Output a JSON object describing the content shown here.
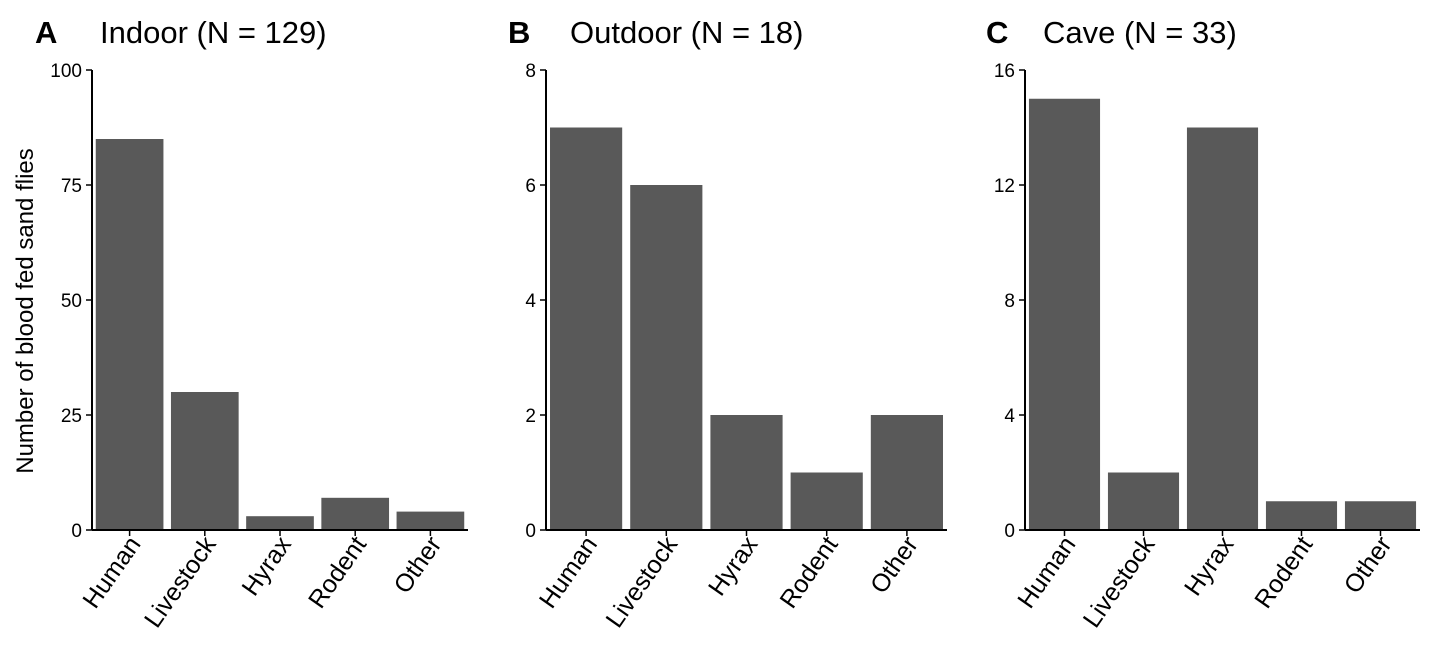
{
  "figure": {
    "ylabel": "Number of blood fed sand flies",
    "bar_color": "#595959"
  },
  "chart_data": [
    {
      "type": "bar",
      "letter": "A",
      "title": "Indoor (N = 129)",
      "categories": [
        "Human",
        "Livestock",
        "Hyrax",
        "Rodent",
        "Other"
      ],
      "values": [
        85,
        30,
        3,
        7,
        4
      ],
      "ylim": [
        0,
        100
      ],
      "yticks": [
        0,
        25,
        50,
        75,
        100
      ],
      "ylabel": "Number of blood fed sand flies",
      "xlabel": "",
      "grid": false
    },
    {
      "type": "bar",
      "letter": "B",
      "title": "Outdoor (N = 18)",
      "categories": [
        "Human",
        "Livestock",
        "Hyrax",
        "Rodent",
        "Other"
      ],
      "values": [
        7,
        6,
        2,
        1,
        2
      ],
      "ylim": [
        0,
        8
      ],
      "yticks": [
        0,
        2,
        4,
        6,
        8
      ],
      "xlabel": "",
      "grid": false
    },
    {
      "type": "bar",
      "letter": "C",
      "title": "Cave (N = 33)",
      "categories": [
        "Human",
        "Livestock",
        "Hyrax",
        "Rodent",
        "Other"
      ],
      "values": [
        15,
        2,
        14,
        1,
        1
      ],
      "ylim": [
        0,
        16
      ],
      "yticks": [
        0,
        4,
        8,
        12,
        16
      ],
      "xlabel": "",
      "grid": false
    }
  ]
}
